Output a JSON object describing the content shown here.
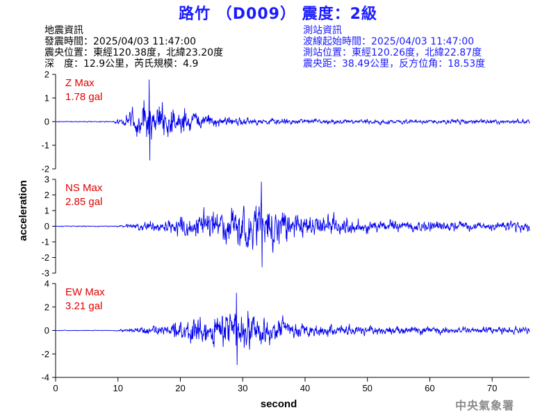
{
  "header": {
    "title": "路竹 （D009） 震度：2級"
  },
  "quake_info": {
    "heading": "地震資訊",
    "origin_time": "發震時間：2025/04/03 11:47:00",
    "epicenter": "震央位置：東經120.38度，北緯23.20度",
    "depth_magnitude": "深　度：12.9公里，芮氏規模：4.9"
  },
  "station_info": {
    "heading": "測站資訊",
    "arrival_time": "波線起始時間：2025/04/03 11:47:00",
    "location": "測站位置：東經120.26度，北緯22.87度",
    "distance": "震央距：38.49公里，反方位角：18.53度"
  },
  "footer": {
    "agency": "中央氣象署"
  },
  "colors": {
    "trace": "#0000ee",
    "max_label": "#e00000",
    "title": "#1a1aff"
  },
  "chart_data": {
    "type": "line",
    "xlabel": "second",
    "ylabel": "acceleration",
    "xlim": [
      0,
      76
    ],
    "xticks": [
      0,
      10,
      20,
      30,
      40,
      50,
      60,
      70
    ],
    "panels": [
      {
        "name": "Z",
        "max_title": "Z Max",
        "max_value": "1.78 gal",
        "ylim": [
          -2,
          2
        ],
        "yticks": [
          2,
          1,
          0,
          -1,
          -2
        ],
        "onset_s": 9,
        "peak_s": 15,
        "peak_gal": 1.78,
        "decay_s": 6,
        "coda_gal": 0.1,
        "noise_gal": 0.02
      },
      {
        "name": "NS",
        "max_title": "NS Max",
        "max_value": "2.85 gal",
        "ylim": [
          -3,
          3
        ],
        "yticks": [
          3,
          2,
          1,
          0,
          -1,
          -2,
          -3
        ],
        "onset_s": 9,
        "peak_s": 33,
        "peak_gal": 2.85,
        "decay_s": 8,
        "coda_gal": 0.3,
        "noise_gal": 0.03
      },
      {
        "name": "EW",
        "max_title": "EW Max",
        "max_value": "3.21 gal",
        "ylim": [
          -4,
          4
        ],
        "yticks": [
          4,
          2,
          0,
          -2,
          -4
        ],
        "onset_s": 9,
        "peak_s": 29,
        "peak_gal": 3.21,
        "decay_s": 8,
        "coda_gal": 0.3,
        "noise_gal": 0.03
      }
    ]
  }
}
